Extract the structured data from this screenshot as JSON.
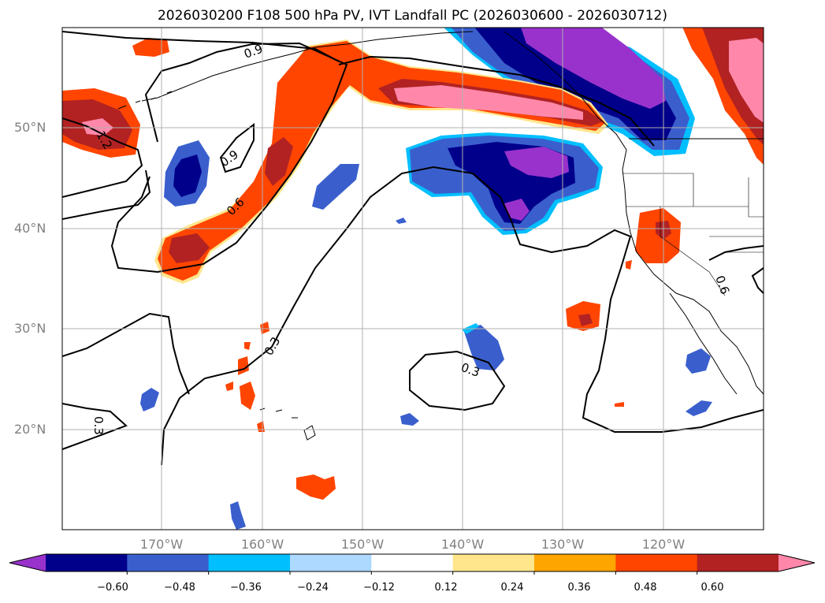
{
  "title": "2026030200 F108 500 hPa PV, IVT Landfall PC (2026030600 - 2026030712)",
  "latitude_labels": [
    "50°N",
    "40°N",
    "30°N",
    "20°N"
  ],
  "longitude_labels": [
    "170°W",
    "160°W",
    "150°W",
    "140°W",
    "130°W",
    "120°W"
  ],
  "contour_labels": [
    "0.9",
    "1.2",
    "0.9",
    "0.6",
    "0.3",
    "0.3",
    "0.3",
    "0.6"
  ],
  "colorbar": {
    "ticks": [
      "−0.60",
      "−0.48",
      "−0.36",
      "−0.24",
      "−0.12",
      "0.12",
      "0.24",
      "0.36",
      "0.48",
      "0.60"
    ],
    "colors": [
      "#9932CC",
      "#00008B",
      "#3A5FCD",
      "#00BFFF",
      "#ADD8FF",
      "#FFFFFF",
      "#FFE68C",
      "#FFA500",
      "#FF4500",
      "#B22222",
      "#FF88AA"
    ]
  }
}
